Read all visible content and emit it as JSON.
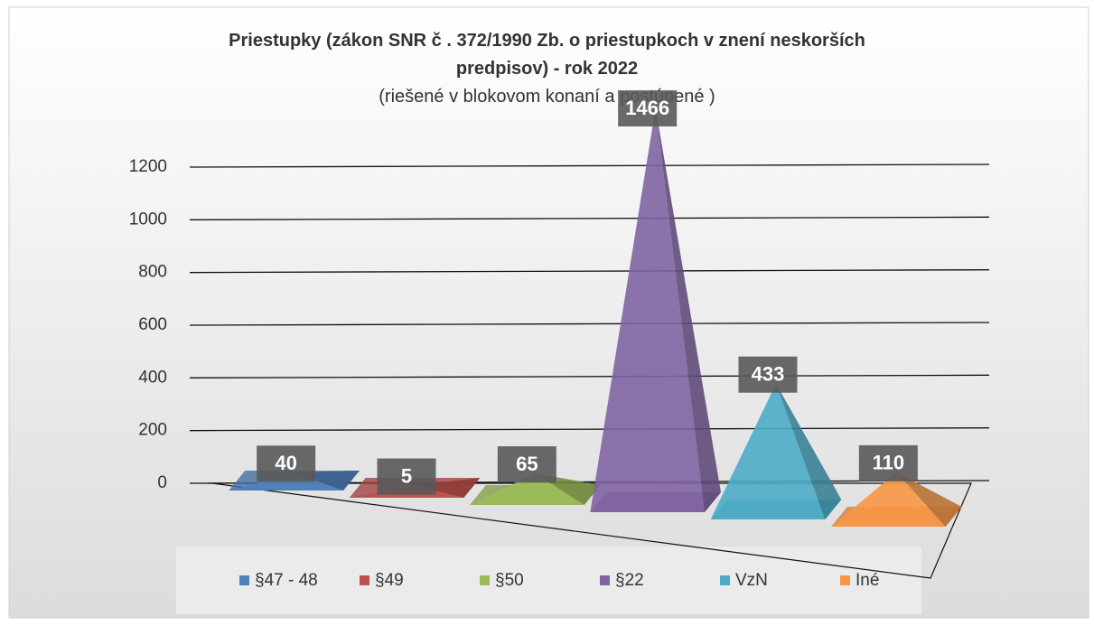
{
  "chart_data": {
    "type": "pyramid",
    "title": "Priestupky (zákon SNR č . 372/1990 Zb. o priestupkoch v znení neskorších predpisov) - rok 2022",
    "subtitle": "(riešené v blokovom konaní a postúpené )",
    "categories": [
      "§47 - 48",
      "§49",
      "§50",
      "§22",
      "VzN",
      "Iné"
    ],
    "values": [
      40,
      5,
      65,
      1466,
      433,
      110
    ],
    "colors": [
      "#4f81bd",
      "#c0504d",
      "#9bbb59",
      "#8064a2",
      "#4bacc6",
      "#f79646"
    ],
    "ylim": [
      0,
      1200
    ],
    "yticks": [
      0,
      200,
      400,
      600,
      800,
      1000,
      1200
    ],
    "grid": true,
    "legend": "bottom"
  }
}
